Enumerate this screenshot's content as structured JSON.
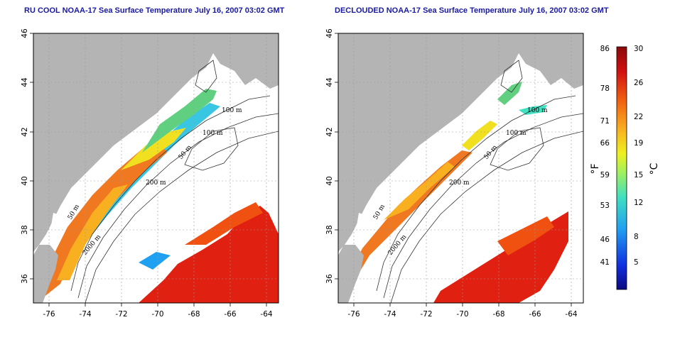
{
  "maps": [
    {
      "title": "RU COOL NOAA-17 Sea Surface Temperature July 16, 2007 03:02 GMT",
      "contour_labels": [
        "100 m",
        "100 m",
        "50 m",
        "200 m",
        "50 m",
        "2000 m"
      ]
    },
    {
      "title": "DECLOUDED NOAA-17 Sea Surface Temperature July 16, 2007 03:02 GMT",
      "contour_labels": [
        "100 m",
        "100 m",
        "50 m",
        "200 m",
        "50 m",
        "2000 m"
      ]
    }
  ],
  "lat_ticks": [
    "46",
    "44",
    "42",
    "40",
    "38",
    "36"
  ],
  "lon_ticks": [
    "-76",
    "-74",
    "-72",
    "-70",
    "-68",
    "-66",
    "-64"
  ],
  "colorbar": {
    "f_ticks": [
      "86",
      "78",
      "71",
      "66",
      "59",
      "53",
      "46",
      "41"
    ],
    "c_ticks": [
      "30",
      "26",
      "22",
      "19",
      "15",
      "12",
      "8",
      "5"
    ],
    "f_unit": "°F",
    "c_unit": "°C",
    "gradient_colors": [
      "#0a0a80",
      "#1030e0",
      "#20a0f0",
      "#40e0c0",
      "#a0f060",
      "#f0f020",
      "#f8b020",
      "#f06010",
      "#d01010",
      "#8a0a0a"
    ]
  },
  "colors": {
    "land": "#b4b4b4",
    "ocean_bg": "#ffffff",
    "title": "#1a1aa0"
  }
}
